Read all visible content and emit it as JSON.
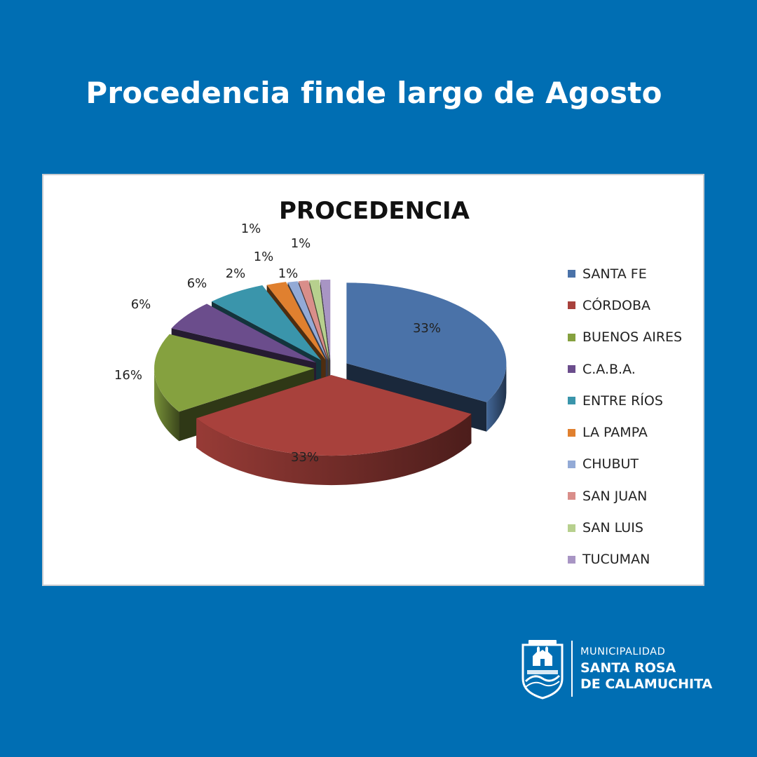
{
  "page": {
    "title": "Procedencia finde largo de Agosto",
    "background": "#006eb3"
  },
  "chart_data": {
    "type": "pie",
    "title": "PROCEDENCIA",
    "three_d": true,
    "exploded": true,
    "legend_position": "right",
    "categories": [
      "SANTA FE",
      "CÓRDOBA",
      "BUENOS AIRES",
      "C.A.B.A.",
      "ENTRE RÍOS",
      "LA PAMPA",
      "CHUBUT",
      "SAN JUAN",
      "SAN LUIS",
      "TUCUMAN"
    ],
    "values": [
      33,
      33,
      16,
      6,
      6,
      2,
      1,
      1,
      1,
      1
    ],
    "labels": [
      "33%",
      "33%",
      "16%",
      "6%",
      "6%",
      "2%",
      "1%",
      "1%",
      "1%",
      "1%"
    ],
    "colors": [
      "#4a72a8",
      "#a8413c",
      "#85a13f",
      "#6b4d8c",
      "#3a95ab",
      "#e0802f",
      "#93aad6",
      "#d98e8a",
      "#b7d08e",
      "#a895c4"
    ]
  },
  "logo": {
    "line1": "MUNICIPALIDAD",
    "line2": "SANTA ROSA",
    "line3": "DE CALAMUCHITA",
    "crest_text": "SANTA ROSA",
    "icon": "municipal-crest-icon"
  }
}
